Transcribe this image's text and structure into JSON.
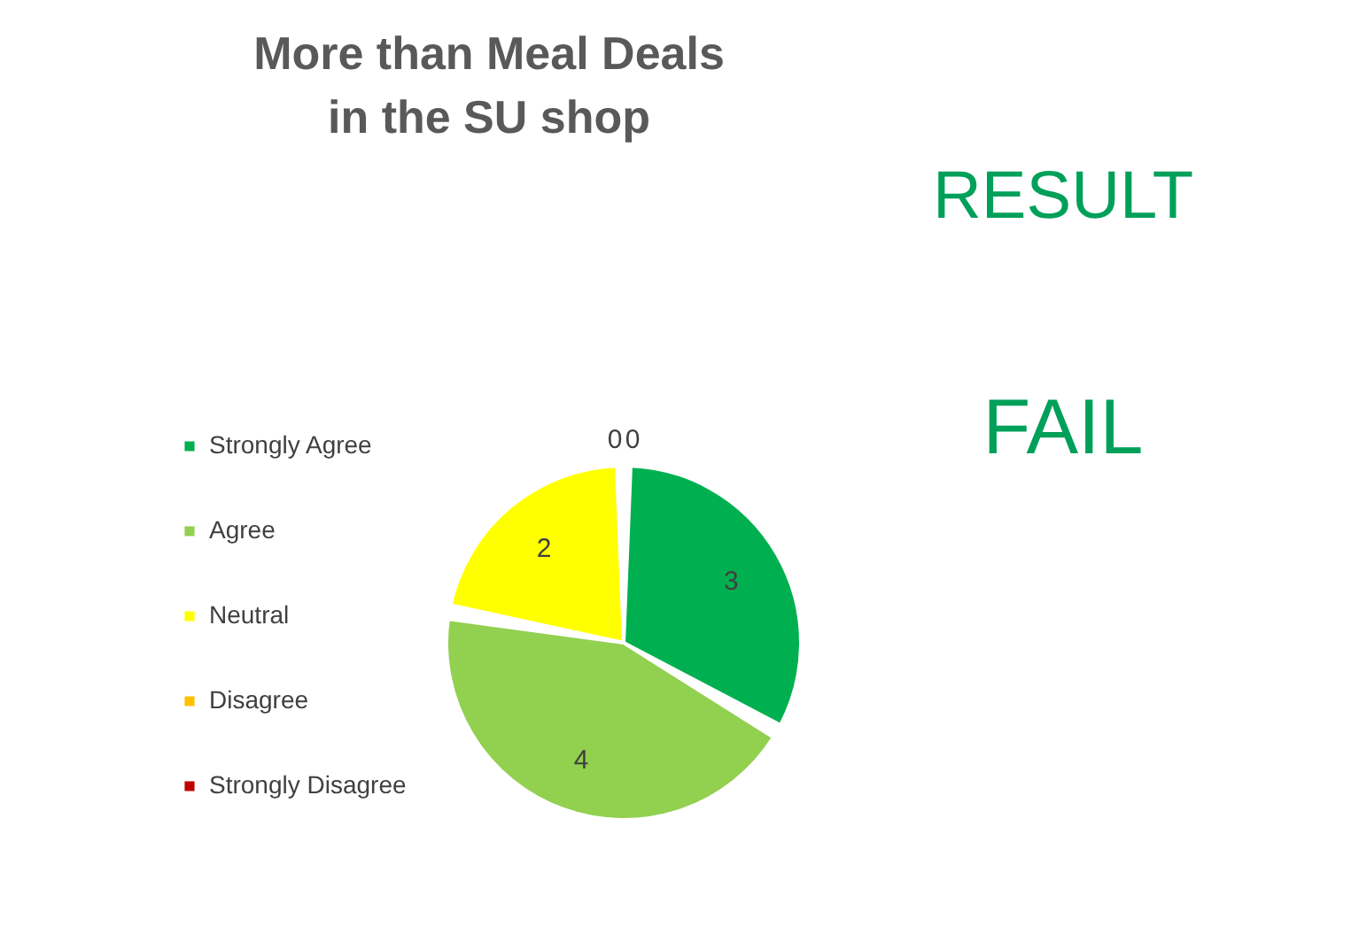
{
  "chart_data": {
    "type": "pie",
    "title": "More than Meal Deals\nin the SU shop",
    "categories": [
      "Strongly Agree",
      "Agree",
      "Neutral",
      "Disagree",
      "Strongly Disagree"
    ],
    "values": [
      3,
      4,
      2,
      0,
      0
    ],
    "colors": [
      "#00b050",
      "#92d050",
      "#ffff00",
      "#ffc000",
      "#c00000"
    ],
    "value_labels": [
      "3",
      "4",
      "2",
      "0",
      "0"
    ],
    "legend": "left",
    "annotations": [
      "RESULT",
      "FAIL"
    ]
  }
}
